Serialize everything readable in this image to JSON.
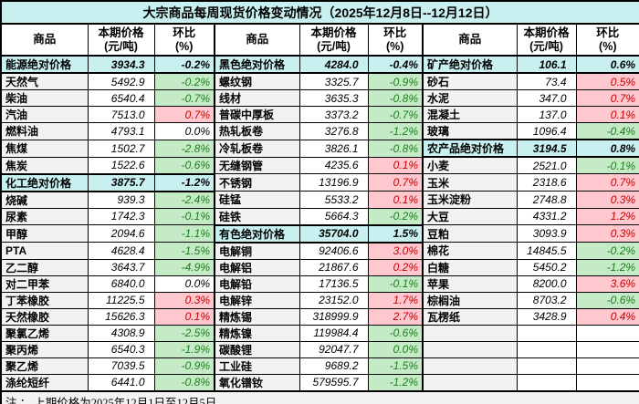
{
  "title": "大宗商品每周现货价格变动情况（2025年12月8日--12月12日）",
  "columns": {
    "name": "商品",
    "price1": "本期价格",
    "price2": "(元/吨)",
    "pct1": "环比",
    "pct2": "(%)"
  },
  "note": "注 ： 上期价格为2025年12月1日至12月5日。",
  "colors": {
    "category_bg": "#C8F0F0",
    "name_bg": "#F2F2F2",
    "up_bg": "#FFC7CE",
    "up_text": "#C80000",
    "down_bg": "#C4EBC6",
    "down_text": "#1E7D1E",
    "border": "#000000"
  },
  "chart_data": {
    "type": "table",
    "title": "大宗商品每周现货价格变动情况（2025年12月8日--12月12日）",
    "columns": [
      "商品",
      "本期价格(元/吨)",
      "环比(%)"
    ],
    "note": "上期价格为2025年12月1日至12月5日。",
    "groups": [
      {
        "rows": [
          {
            "name": "能源绝对价格",
            "price": "3934.3",
            "pct": "-0.2%",
            "style": "cat"
          },
          {
            "name": "天然气",
            "price": "5492.9",
            "pct": "-0.2%",
            "style": "neg"
          },
          {
            "name": "柴油",
            "price": "6540.4",
            "pct": "-0.7%",
            "style": "neg"
          },
          {
            "name": "汽油",
            "price": "7513.0",
            "pct": "0.7%",
            "style": "pos"
          },
          {
            "name": "燃料油",
            "price": "4793.1",
            "pct": "0.0%",
            "style": "flat"
          },
          {
            "name": "焦煤",
            "price": "1502.7",
            "pct": "-2.8%",
            "style": "neg"
          },
          {
            "name": "焦炭",
            "price": "1522.6",
            "pct": "-0.6%",
            "style": "neg"
          },
          {
            "name": "化工绝对价格",
            "price": "3875.7",
            "pct": "-1.2%",
            "style": "cat"
          },
          {
            "name": "烧碱",
            "price": "939.3",
            "pct": "-2.4%",
            "style": "neg"
          },
          {
            "name": "尿素",
            "price": "1742.3",
            "pct": "-0.1%",
            "style": "neg"
          },
          {
            "name": "甲醇",
            "price": "2094.6",
            "pct": "-1.1%",
            "style": "neg"
          },
          {
            "name": "PTA",
            "price": "4628.4",
            "pct": "-1.5%",
            "style": "neg"
          },
          {
            "name": "乙二醇",
            "price": "3643.7",
            "pct": "-4.9%",
            "style": "neg"
          },
          {
            "name": "对二甲苯",
            "price": "6840.0",
            "pct": "0.0%",
            "style": "flat"
          },
          {
            "name": "丁苯橡胶",
            "price": "11225.5",
            "pct": "0.3%",
            "style": "pos"
          },
          {
            "name": "天然橡胶",
            "price": "15626.3",
            "pct": "0.1%",
            "style": "pos"
          },
          {
            "name": "聚氯乙烯",
            "price": "4308.9",
            "pct": "-2.5%",
            "style": "neg"
          },
          {
            "name": "聚丙烯",
            "price": "6540.3",
            "pct": "-1.9%",
            "style": "neg"
          },
          {
            "name": "聚乙烯",
            "price": "7039.5",
            "pct": "-0.9%",
            "style": "neg"
          },
          {
            "name": "涤纶短纤",
            "price": "6441.0",
            "pct": "-0.8%",
            "style": "neg"
          }
        ]
      },
      {
        "rows": [
          {
            "name": "黑色绝对价格",
            "price": "4284.0",
            "pct": "-0.4%",
            "style": "cat"
          },
          {
            "name": "螺纹钢",
            "price": "3325.7",
            "pct": "-0.9%",
            "style": "neg"
          },
          {
            "name": "线材",
            "price": "3635.3",
            "pct": "-0.8%",
            "style": "neg"
          },
          {
            "name": "普碳中厚板",
            "price": "3373.2",
            "pct": "-0.7%",
            "style": "neg"
          },
          {
            "name": "热轧板卷",
            "price": "3276.8",
            "pct": "-1.2%",
            "style": "neg"
          },
          {
            "name": "冷轧板卷",
            "price": "3826.1",
            "pct": "-0.8%",
            "style": "neg"
          },
          {
            "name": "无缝钢管",
            "price": "4235.6",
            "pct": "0.1%",
            "style": "pos"
          },
          {
            "name": "不锈钢",
            "price": "13196.9",
            "pct": "0.7%",
            "style": "pos"
          },
          {
            "name": "硅锰",
            "price": "5533.2",
            "pct": "0.1%",
            "style": "pos"
          },
          {
            "name": "硅铁",
            "price": "5664.3",
            "pct": "-0.2%",
            "style": "neg"
          },
          {
            "name": "有色绝对价格",
            "price": "35704.0",
            "pct": "1.5%",
            "style": "cat"
          },
          {
            "name": "电解铜",
            "price": "92406.6",
            "pct": "3.0%",
            "style": "pos"
          },
          {
            "name": "电解铝",
            "price": "21867.6",
            "pct": "0.2%",
            "style": "pos"
          },
          {
            "name": "电解铅",
            "price": "17136.5",
            "pct": "-0.1%",
            "style": "neg"
          },
          {
            "name": "电解锌",
            "price": "23152.0",
            "pct": "1.7%",
            "style": "pos"
          },
          {
            "name": "精炼锡",
            "price": "318999.9",
            "pct": "2.7%",
            "style": "pos"
          },
          {
            "name": "精炼镍",
            "price": "119984.4",
            "pct": "-0.6%",
            "style": "neg"
          },
          {
            "name": "碳酸锂",
            "price": "92047.7",
            "pct": "0.0%",
            "style": "neg"
          },
          {
            "name": "工业硅",
            "price": "9689.2",
            "pct": "-1.5%",
            "style": "neg"
          },
          {
            "name": "氧化镨钕",
            "price": "579595.7",
            "pct": "-1.2%",
            "style": "neg"
          }
        ]
      },
      {
        "rows": [
          {
            "name": "矿产绝对价格",
            "price": "106.1",
            "pct": "0.6%",
            "style": "cat"
          },
          {
            "name": "砂石",
            "price": "73.4",
            "pct": "0.5%",
            "style": "pos"
          },
          {
            "name": "水泥",
            "price": "347.0",
            "pct": "0.7%",
            "style": "pos"
          },
          {
            "name": "混凝土",
            "price": "137.0",
            "pct": "0.1%",
            "style": "pos"
          },
          {
            "name": "玻璃",
            "price": "1096.4",
            "pct": "-0.4%",
            "style": "neg"
          },
          {
            "name": "农产品绝对价格",
            "price": "3194.5",
            "pct": "0.8%",
            "style": "cat"
          },
          {
            "name": "小麦",
            "price": "2521.0",
            "pct": "-0.1%",
            "style": "neg"
          },
          {
            "name": "玉米",
            "price": "2318.6",
            "pct": "0.7%",
            "style": "pos"
          },
          {
            "name": "玉米淀粉",
            "price": "2748.8",
            "pct": "0.3%",
            "style": "pos"
          },
          {
            "name": "大豆",
            "price": "4331.2",
            "pct": "1.2%",
            "style": "pos"
          },
          {
            "name": "豆粕",
            "price": "3093.9",
            "pct": "0.3%",
            "style": "pos"
          },
          {
            "name": "棉花",
            "price": "14845.5",
            "pct": "-0.2%",
            "style": "neg"
          },
          {
            "name": "白糖",
            "price": "5450.2",
            "pct": "-1.2%",
            "style": "neg"
          },
          {
            "name": "苹果",
            "price": "8200.0",
            "pct": "3.6%",
            "style": "pos"
          },
          {
            "name": "棕榈油",
            "price": "8703.2",
            "pct": "-0.6%",
            "style": "neg"
          },
          {
            "name": "瓦楞纸",
            "price": "3428.9",
            "pct": "0.4%",
            "style": "pos"
          },
          {
            "name": "",
            "price": "",
            "pct": "",
            "style": "empty"
          },
          {
            "name": "",
            "price": "",
            "pct": "",
            "style": "empty"
          },
          {
            "name": "",
            "price": "",
            "pct": "",
            "style": "empty"
          },
          {
            "name": "",
            "price": "",
            "pct": "",
            "style": "empty"
          }
        ]
      }
    ]
  }
}
